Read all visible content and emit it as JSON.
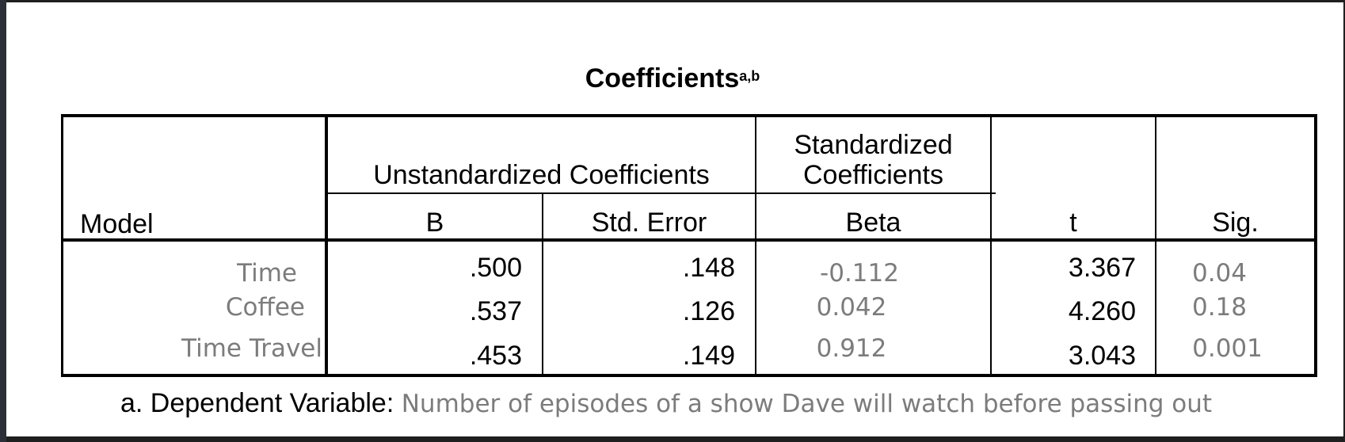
{
  "table": {
    "title": "Coefficients",
    "title_superscript": "a,b",
    "headers": {
      "model": "Model",
      "unstandardized": "Unstandardized Coefficients",
      "standardized_line1": "Standardized",
      "standardized_line2": "Coefficients",
      "b": "B",
      "std_error": "Std. Error",
      "beta": "Beta",
      "t": "t",
      "sig": "Sig."
    },
    "rows": [
      {
        "label": "Time",
        "b": ".500",
        "std_error": ".148",
        "beta": "-0.112",
        "t": "3.367",
        "sig": "0.04"
      },
      {
        "label": "Coffee",
        "b": ".537",
        "std_error": ".126",
        "beta": "0.042",
        "t": "4.260",
        "sig": "0.18"
      },
      {
        "label": "Time Travel",
        "b": ".453",
        "std_error": ".149",
        "beta": "0.912",
        "t": "3.043",
        "sig": "0.001"
      }
    ]
  },
  "footnote": {
    "prefix": "a. Dependent Variable:",
    "text": "Number of episodes of a show Dave will watch before passing out"
  },
  "colors": {
    "frame": "#1f1f1f",
    "grey_text": "#7c7c7c"
  }
}
